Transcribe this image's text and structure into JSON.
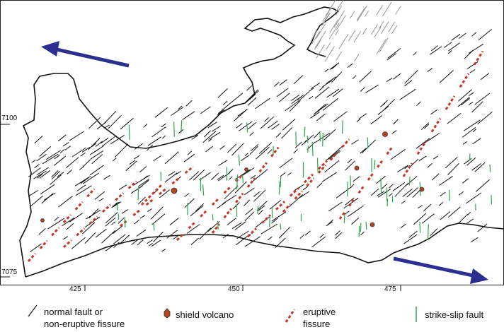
{
  "map": {
    "axes": {
      "x_ticks": [
        "425",
        "450",
        "475"
      ],
      "y_ticks": [
        "7100",
        "7075"
      ]
    },
    "arrows": {
      "color": "#2b2f8f"
    },
    "legend": {
      "items": [
        {
          "id": "normal-fault",
          "label_lines": [
            "normal fault or",
            "non-eruptive fissure"
          ],
          "color": "#111111"
        },
        {
          "id": "shield-volcano",
          "label_lines": [
            "shield volcano"
          ],
          "color": "#b5441f"
        },
        {
          "id": "eruptive-fissure",
          "label_lines": [
            "eruptive",
            "fissure"
          ],
          "color": "#c0392b"
        },
        {
          "id": "strike-slip",
          "label_lines": [
            "strike-slip fault"
          ],
          "color": "#2aa84a"
        }
      ]
    }
  }
}
